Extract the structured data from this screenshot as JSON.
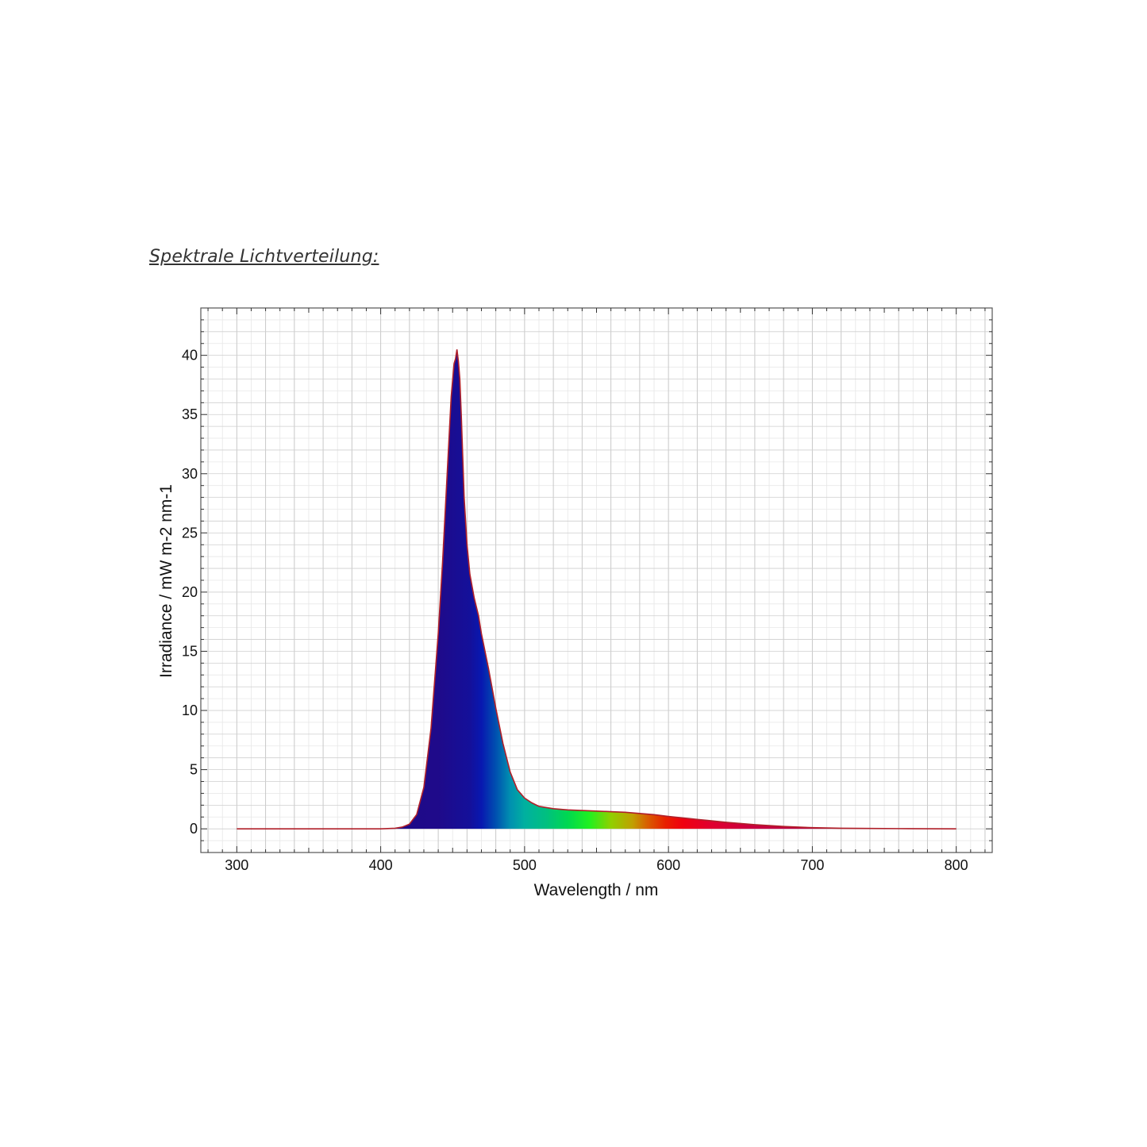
{
  "page": {
    "heading": "Spektrale Lichtverteilung:"
  },
  "chart_data": {
    "type": "area",
    "title": "",
    "xlabel": "Wavelength / nm",
    "ylabel": "Irradiance / mW m-2 nm-1",
    "xlim": [
      275,
      825
    ],
    "ylim": [
      -2,
      44
    ],
    "x_ticks": [
      300,
      400,
      500,
      600,
      700,
      800
    ],
    "y_ticks": [
      0,
      5,
      10,
      15,
      20,
      25,
      30,
      35,
      40
    ],
    "grid": true,
    "fill": "visible-spectrum color gradient under the curve",
    "line_color": "#b0202a",
    "series": [
      {
        "x": [
          300,
          350,
          380,
          400,
          410,
          415,
          420,
          425,
          430,
          435,
          440,
          443,
          446,
          449,
          451,
          452,
          453,
          454,
          455,
          456,
          457,
          458,
          460,
          462,
          465,
          468,
          470,
          475,
          480,
          485,
          490,
          495,
          500,
          505,
          510,
          520,
          530,
          540,
          550,
          560,
          570,
          580,
          590,
          600,
          620,
          640,
          660,
          680,
          700,
          720,
          740,
          760,
          780,
          800
        ],
        "y": [
          0,
          0,
          0,
          0,
          0.05,
          0.15,
          0.4,
          1.2,
          3.5,
          8.5,
          16.5,
          22.5,
          29.5,
          36.5,
          39.3,
          39.7,
          40.5,
          39.5,
          38.0,
          35.0,
          31.5,
          28.0,
          24.0,
          21.5,
          19.5,
          18.0,
          16.5,
          13.5,
          10.2,
          7.2,
          4.8,
          3.3,
          2.6,
          2.2,
          1.9,
          1.7,
          1.6,
          1.55,
          1.5,
          1.45,
          1.4,
          1.3,
          1.2,
          1.05,
          0.8,
          0.55,
          0.35,
          0.2,
          0.1,
          0.05,
          0.03,
          0.02,
          0.01,
          0
        ]
      }
    ]
  }
}
